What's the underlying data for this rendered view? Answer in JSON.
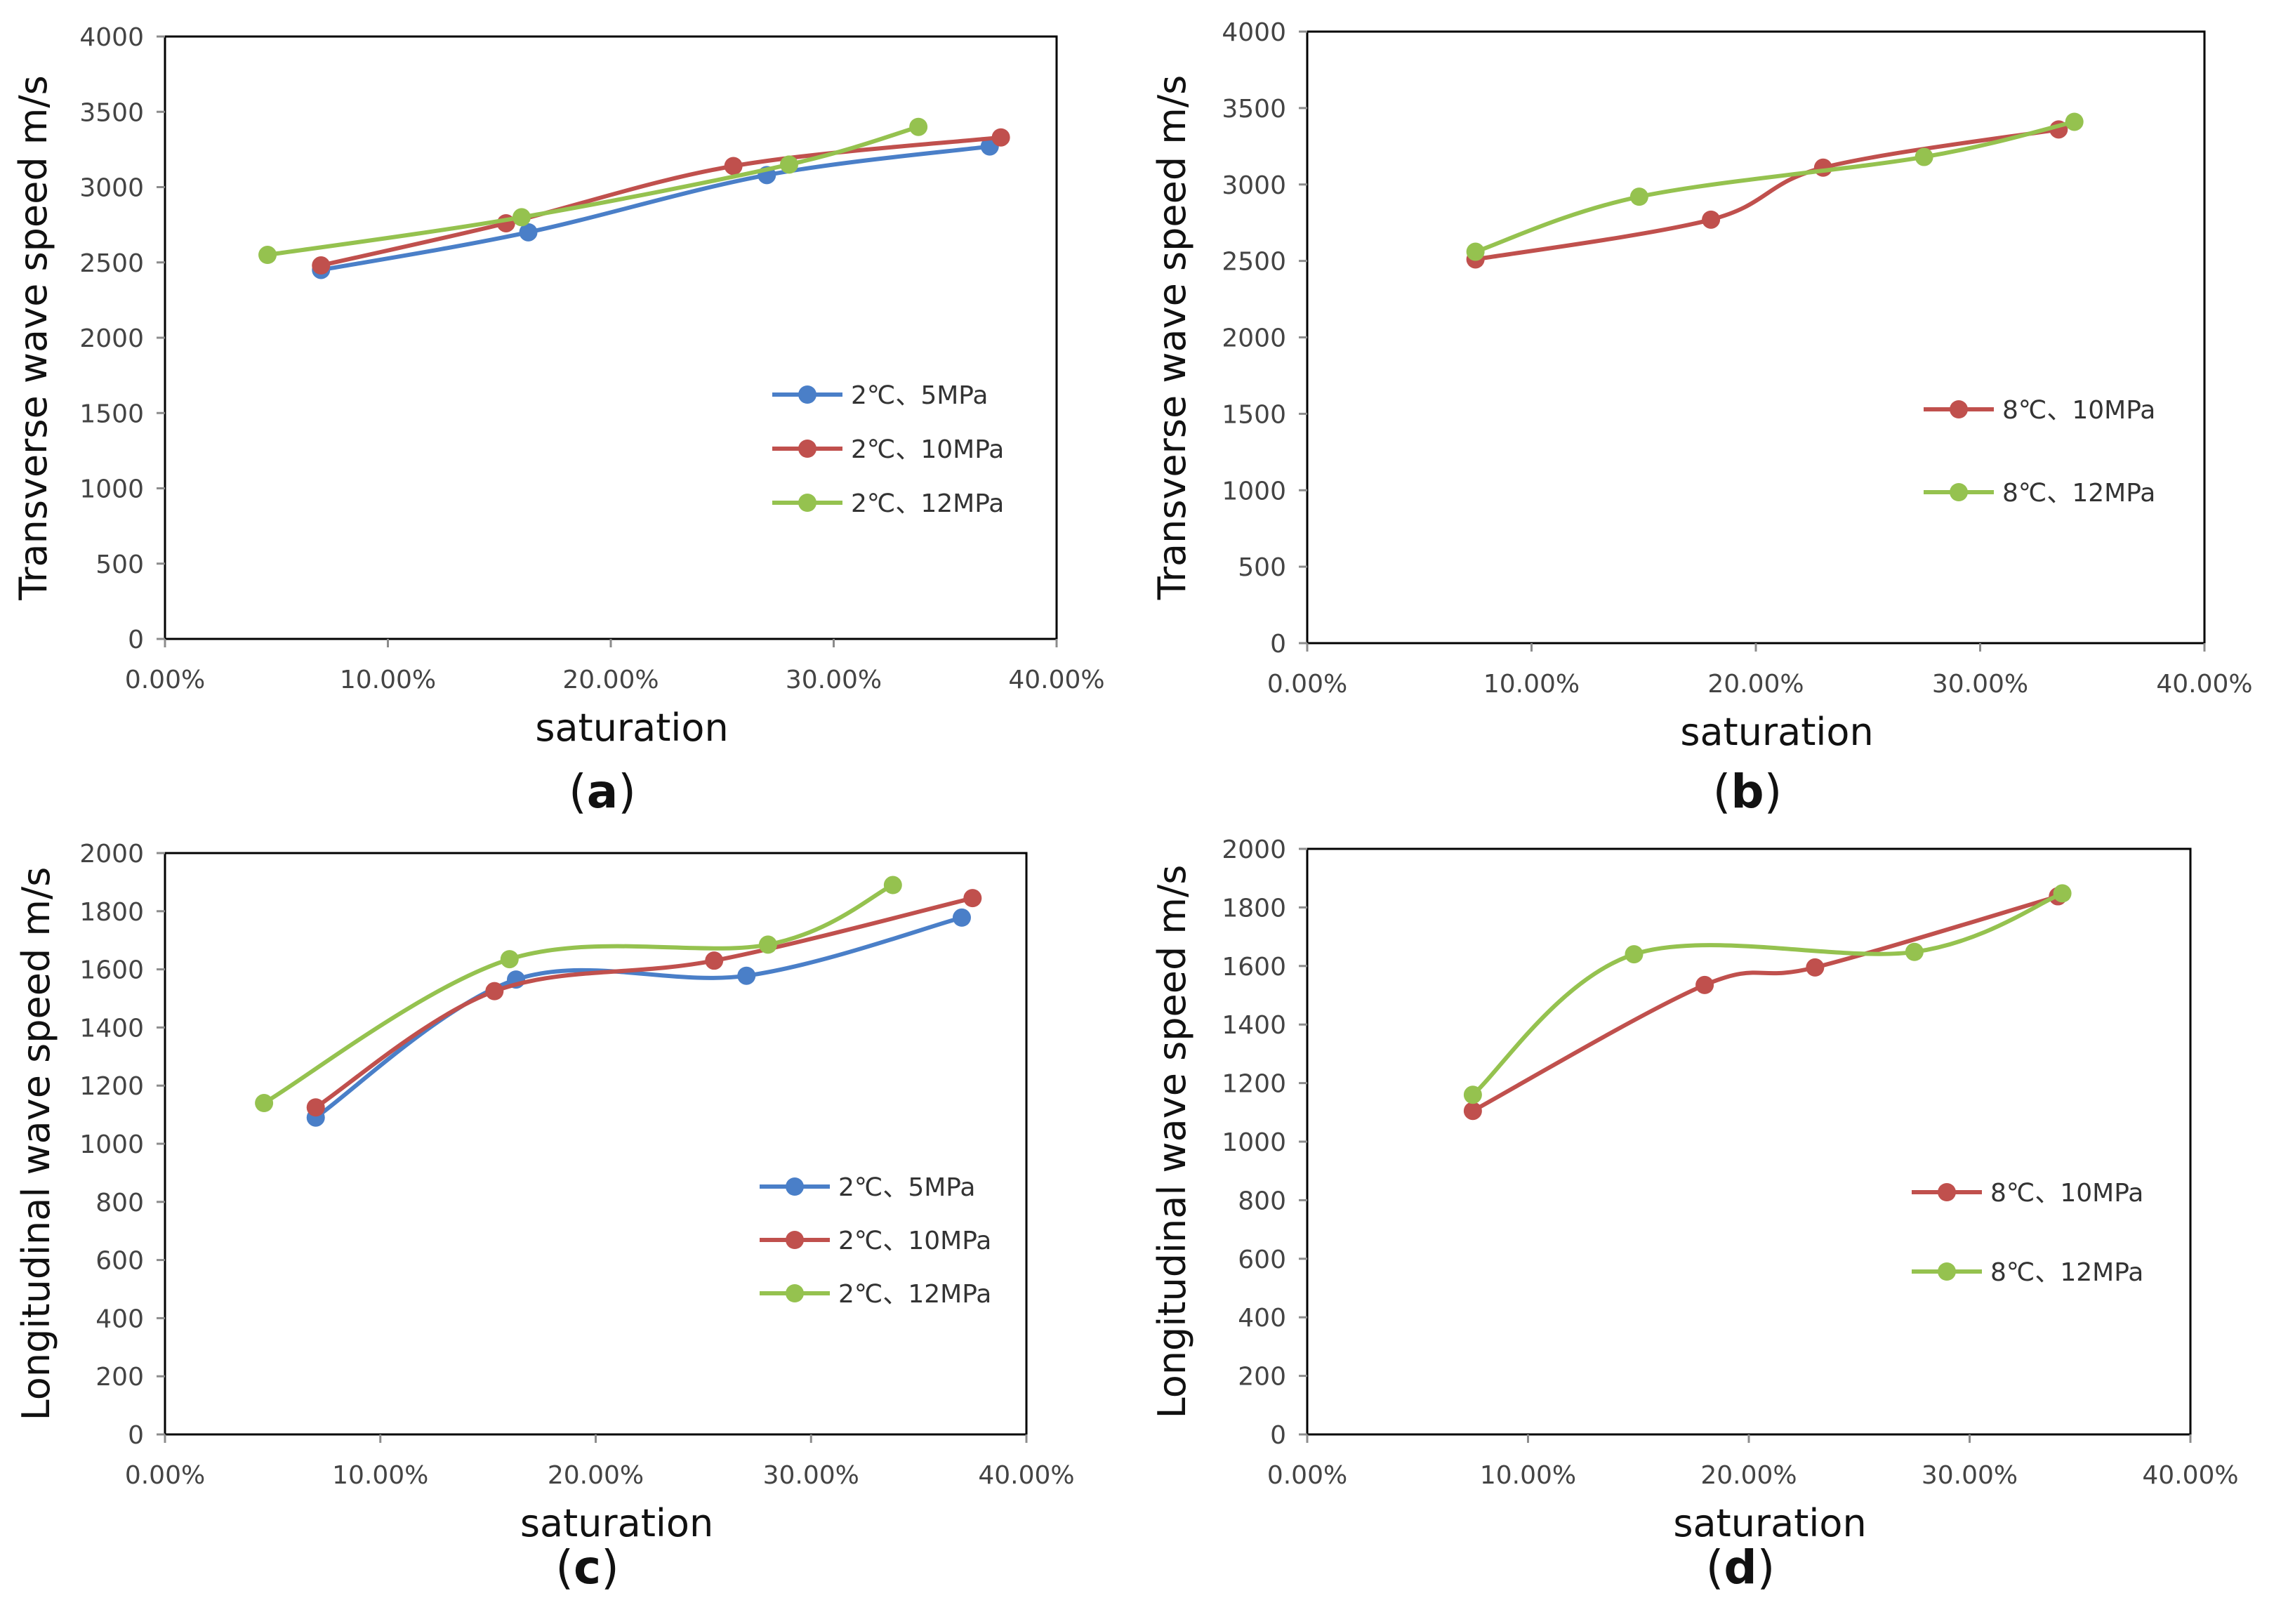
{
  "colors": {
    "blue": "#4a7fc8",
    "red": "#c0504d",
    "green": "#95c24f",
    "axis": "#8c8c8c",
    "frame": "#000000"
  },
  "chart_data": [
    {
      "panel": "(a)",
      "panel_letter": "a",
      "type": "line",
      "xlabel": "saturation",
      "ylabel": "Transverse wave speed m/s",
      "xlim": [
        0,
        0.4
      ],
      "ylim": [
        0,
        4000
      ],
      "xticks": [
        "0.00%",
        "10.00%",
        "20.00%",
        "30.00%",
        "40.00%"
      ],
      "yticks": [
        "0",
        "500",
        "1000",
        "1500",
        "2000",
        "2500",
        "3000",
        "3500",
        "4000"
      ],
      "legend_position": "right-middle",
      "series": [
        {
          "name": "2℃、5MPa",
          "color": "blue",
          "x": [
            0.07,
            0.163,
            0.27,
            0.37
          ],
          "y": [
            2450,
            2700,
            3080,
            3270
          ]
        },
        {
          "name": "2℃、10MPa",
          "color": "red",
          "x": [
            0.07,
            0.153,
            0.255,
            0.375
          ],
          "y": [
            2480,
            2760,
            3140,
            3330
          ]
        },
        {
          "name": "2℃、12MPa",
          "color": "green",
          "x": [
            0.046,
            0.16,
            0.28,
            0.338
          ],
          "y": [
            2550,
            2800,
            3150,
            3400
          ]
        }
      ]
    },
    {
      "panel": "(b)",
      "panel_letter": "b",
      "type": "line",
      "xlabel": "saturation",
      "ylabel": "Transverse wave speed m/s",
      "xlim": [
        0,
        0.4
      ],
      "ylim": [
        0,
        4000
      ],
      "xticks": [
        "0.00%",
        "10.00%",
        "20.00%",
        "30.00%",
        "40.00%"
      ],
      "yticks": [
        "0",
        "500",
        "1000",
        "1500",
        "2000",
        "2500",
        "3000",
        "3500",
        "4000"
      ],
      "legend_position": "right-middle",
      "series": [
        {
          "name": "8℃、10MPa",
          "color": "red",
          "x": [
            0.075,
            0.18,
            0.23,
            0.335
          ],
          "y": [
            2510,
            2770,
            3110,
            3360
          ]
        },
        {
          "name": "8℃、12MPa",
          "color": "green",
          "x": [
            0.075,
            0.148,
            0.275,
            0.342
          ],
          "y": [
            2560,
            2920,
            3180,
            3410
          ]
        }
      ]
    },
    {
      "panel": "(c)",
      "panel_letter": "c",
      "type": "line",
      "xlabel": "saturation",
      "ylabel": "Longitudinal wave speed m/s",
      "xlim": [
        0,
        0.4
      ],
      "ylim": [
        0,
        2000
      ],
      "xticks": [
        "0.00%",
        "10.00%",
        "20.00%",
        "30.00%",
        "40.00%"
      ],
      "yticks": [
        "0",
        "200",
        "400",
        "600",
        "800",
        "1000",
        "1200",
        "1400",
        "1600",
        "1800",
        "2000"
      ],
      "legend_position": "right-middle",
      "series": [
        {
          "name": "2℃、5MPa",
          "color": "blue",
          "x": [
            0.07,
            0.163,
            0.27,
            0.37
          ],
          "y": [
            1090,
            1565,
            1578,
            1778
          ]
        },
        {
          "name": "2℃、10MPa",
          "color": "red",
          "x": [
            0.07,
            0.153,
            0.255,
            0.375
          ],
          "y": [
            1125,
            1525,
            1630,
            1845
          ]
        },
        {
          "name": "2℃、12MPa",
          "color": "green",
          "x": [
            0.046,
            0.16,
            0.28,
            0.338
          ],
          "y": [
            1140,
            1635,
            1685,
            1890
          ]
        }
      ]
    },
    {
      "panel": "(d)",
      "panel_letter": "d",
      "type": "line",
      "xlabel": "saturation",
      "ylabel": "Longitudinal wave speed m/s",
      "xlim": [
        0,
        0.4
      ],
      "ylim": [
        0,
        2000
      ],
      "xticks": [
        "0.00%",
        "10.00%",
        "20.00%",
        "30.00%",
        "40.00%"
      ],
      "yticks": [
        "0",
        "200",
        "400",
        "600",
        "800",
        "1000",
        "1200",
        "1400",
        "1600",
        "1800",
        "2000"
      ],
      "legend_position": "right-middle",
      "series": [
        {
          "name": "8℃、10MPa",
          "color": "red",
          "x": [
            0.075,
            0.18,
            0.23,
            0.34
          ],
          "y": [
            1105,
            1535,
            1595,
            1838
          ]
        },
        {
          "name": "8℃、12MPa",
          "color": "green",
          "x": [
            0.075,
            0.148,
            0.275,
            0.342
          ],
          "y": [
            1160,
            1640,
            1648,
            1848
          ]
        }
      ]
    }
  ]
}
